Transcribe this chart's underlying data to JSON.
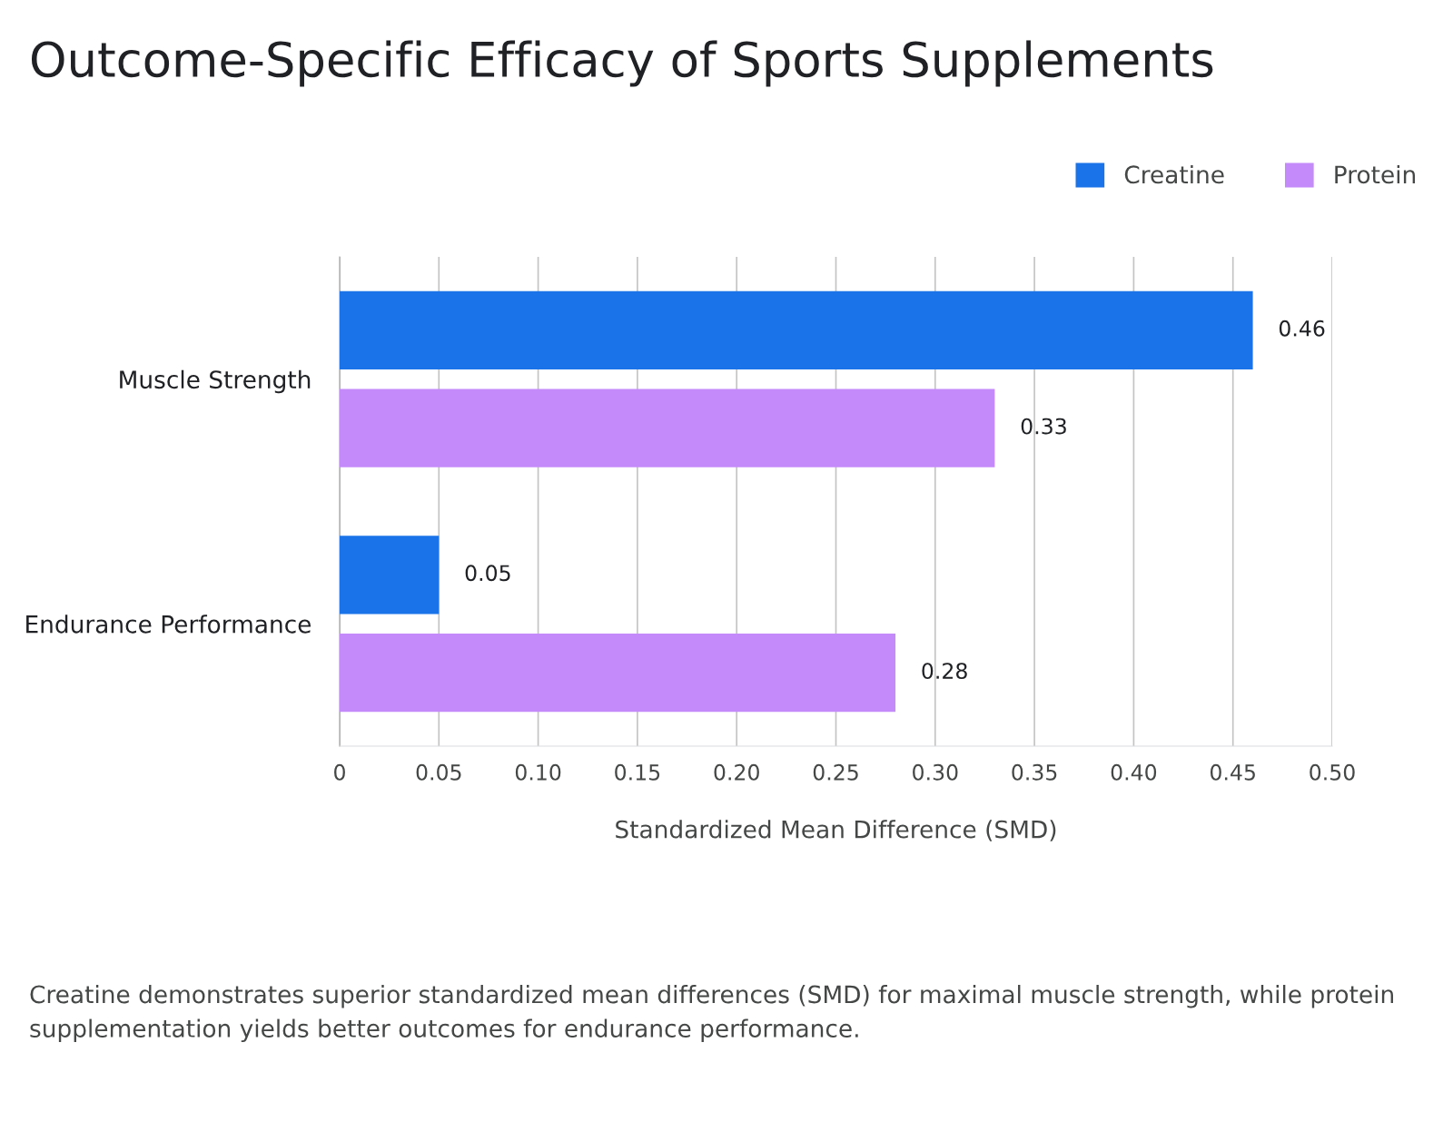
{
  "chart_data": {
    "type": "bar",
    "orientation": "horizontal",
    "title": "Outcome-Specific Efficacy of Sports Supplements",
    "categories": [
      "Muscle Strength",
      "Endurance Performance"
    ],
    "series": [
      {
        "name": "Creatine",
        "color": "#1a73e8",
        "values": [
          0.46,
          0.05
        ]
      },
      {
        "name": "Protein",
        "color": "#c58af9",
        "values": [
          0.33,
          0.28
        ]
      }
    ],
    "xlabel": "Standardized Mean Difference (SMD)",
    "xlim": [
      0,
      0.5
    ],
    "xticks": [
      0,
      0.05,
      {
        "value": 0.1,
        "label": "0.10"
      },
      0.15,
      {
        "value": 0.2,
        "label": "0.20"
      },
      0.25,
      {
        "value": 0.3,
        "label": "0.30"
      },
      0.35,
      {
        "value": 0.4,
        "label": "0.40"
      },
      0.45,
      {
        "value": 0.5,
        "label": "0.50"
      }
    ],
    "data_labels": true,
    "grid": "x",
    "legend": "top right",
    "annotations": [
      "Creatine demonstrates superior standardized mean differences (SMD) for maximal muscle strength, while protein supplementation yields better outcomes for endurance performance."
    ]
  }
}
